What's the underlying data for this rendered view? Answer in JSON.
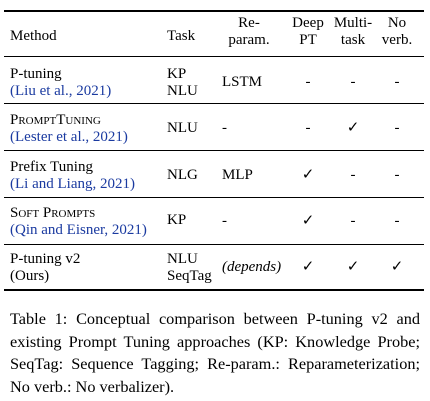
{
  "header": {
    "method": "Method",
    "task": "Task",
    "reparam_line1": "Re-",
    "reparam_line2": "param.",
    "deep_line1": "Deep",
    "deep_line2": "PT",
    "multi_line1": "Multi-",
    "multi_line2": "task",
    "noverb_line1": "No",
    "noverb_line2": "verb."
  },
  "rows": [
    {
      "method": "P-tuning",
      "citation": "(Liu et al., 2021)",
      "task_line1": "KP",
      "task_line2": "NLU",
      "reparam": "LSTM",
      "deep_pt": "-",
      "multi_task": "-",
      "no_verb": "-"
    },
    {
      "method": "PromptTuning",
      "citation": "(Lester et al., 2021)",
      "task_line1": "NLU",
      "reparam": "-",
      "deep_pt": "-",
      "multi_task": "✓",
      "no_verb": "-"
    },
    {
      "method": "Prefix Tuning",
      "citation": "(Li and Liang, 2021)",
      "task_line1": "NLG",
      "reparam": "MLP",
      "deep_pt": "✓",
      "multi_task": "-",
      "no_verb": "-"
    },
    {
      "method": "Soft Prompts",
      "citation": "(Qin and Eisner, 2021)",
      "task_line1": "KP",
      "reparam": "-",
      "deep_pt": "✓",
      "multi_task": "-",
      "no_verb": "-"
    },
    {
      "method": "P-tuning v2",
      "citation": "(Ours)",
      "task_line1": "NLU",
      "task_line2": "SeqTag",
      "reparam": "(depends)",
      "deep_pt": "✓",
      "multi_task": "✓",
      "no_verb": "✓"
    }
  ],
  "caption": "Table 1: Conceptual comparison between P-tuning v2 and existing Prompt Tuning approaches (KP: Knowledge Probe; SeqTag: Sequence Tagging; Re-param.: Reparameterization; No verb.: No verbalizer)."
}
